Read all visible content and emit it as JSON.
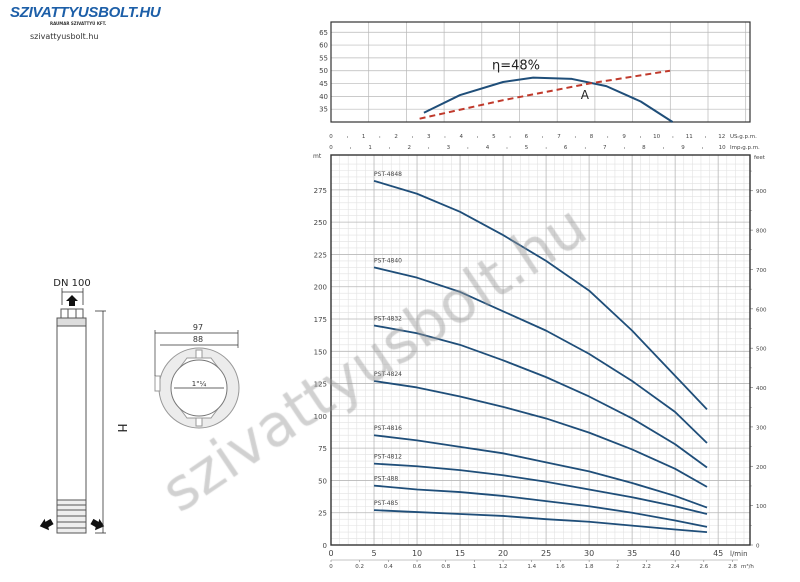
{
  "logo": {
    "brand": "SZIVATTYUSBOLT.HU",
    "tagline": "RAUMAR SZIVATTYÚ KFT.",
    "site": "szivattyusbolt.hu"
  },
  "watermark": "szivattyusbolt.hu",
  "drawing": {
    "outlet": "DN 100",
    "height_label": "H",
    "outer_diameter": "97",
    "body_diameter": "88",
    "thread": "1\"¼"
  },
  "colors": {
    "curve": "#1f4e79",
    "dashed": "#c0392b",
    "grid_major": "#b8b8b8",
    "grid_minor": "#e2e2e2",
    "axis": "#333333"
  },
  "chart_data": [
    {
      "type": "line",
      "panel": "efficiency",
      "ylim": [
        30,
        69
      ],
      "yticks": [
        35,
        40,
        45,
        50,
        55,
        60,
        65
      ],
      "xlim_lmin": [
        0,
        48.7
      ],
      "annotations": [
        "η=48%",
        "A"
      ],
      "series": [
        {
          "style": "solid",
          "points": [
            [
              10.8,
              33.6
            ],
            [
              15,
              40.5
            ],
            [
              20,
              45.6
            ],
            [
              23.5,
              47.3
            ],
            [
              28,
              46.8
            ],
            [
              32,
              44
            ],
            [
              36,
              38
            ],
            [
              39.7,
              30
            ]
          ]
        },
        {
          "style": "dashed",
          "points": [
            [
              10.3,
              31.3
            ],
            [
              20,
              38.5
            ],
            [
              30,
              45
            ],
            [
              39.4,
              50
            ]
          ]
        }
      ]
    },
    {
      "type": "line",
      "panel": "head",
      "xlabel": "l/min",
      "ylabel_left": "mt",
      "ylabel_right": "feet",
      "xlim": [
        0,
        48.7
      ],
      "ylim": [
        0,
        302
      ],
      "xticks": [
        0,
        5,
        10,
        15,
        20,
        25,
        30,
        35,
        40,
        45
      ],
      "yticks": [
        0,
        25,
        50,
        75,
        100,
        125,
        150,
        175,
        200,
        225,
        250,
        275
      ],
      "yticks_right": [
        0,
        100,
        200,
        300,
        400,
        500,
        600,
        700,
        800,
        900
      ],
      "secondary_x": [
        {
          "label": "US g.p.m.",
          "ticks": [
            0,
            1,
            2,
            3,
            4,
            5,
            6,
            7,
            8,
            9,
            10,
            11,
            12
          ],
          "lmin_per_unit": 3.785
        },
        {
          "label": "Imp g.p.m.",
          "ticks": [
            0,
            1,
            2,
            3,
            4,
            5,
            6,
            7,
            8,
            9,
            10
          ],
          "lmin_per_unit": 4.546
        },
        {
          "label": "m³/h",
          "ticks": [
            "0",
            "0.2",
            "0.4",
            "0.6",
            "0.8",
            "1",
            "1.2",
            "1.4",
            "1.6",
            "1.8",
            "2",
            "2.2",
            "2.4",
            "2.6",
            "2.8"
          ],
          "lmin_per_unit": 16.667
        }
      ],
      "x": [
        5,
        10,
        15,
        20,
        25,
        30,
        35,
        40,
        43.7
      ],
      "series": [
        {
          "name": "PST-4848",
          "values": [
            282,
            272,
            258,
            240,
            220,
            197,
            166,
            131,
            105
          ]
        },
        {
          "name": "PST-4840",
          "values": [
            215,
            207,
            196,
            181,
            166,
            148,
            127,
            103,
            79
          ]
        },
        {
          "name": "PST-4832",
          "values": [
            170,
            164,
            155,
            143,
            130,
            115,
            98,
            78,
            60
          ]
        },
        {
          "name": "PST-4824",
          "values": [
            127,
            122,
            115,
            107,
            98,
            87,
            74,
            59,
            45
          ]
        },
        {
          "name": "PST-4816",
          "values": [
            85,
            81,
            76,
            71,
            64,
            57,
            48,
            38,
            29
          ]
        },
        {
          "name": "PST-4812",
          "values": [
            63,
            61,
            58,
            54,
            49,
            43,
            37,
            30,
            24
          ]
        },
        {
          "name": "PST-488",
          "values": [
            46,
            43,
            41,
            38,
            34,
            30,
            25,
            19,
            14
          ]
        },
        {
          "name": "PST-485",
          "values": [
            27,
            25.5,
            24,
            22.5,
            20,
            18,
            15,
            12,
            10
          ]
        }
      ]
    }
  ]
}
